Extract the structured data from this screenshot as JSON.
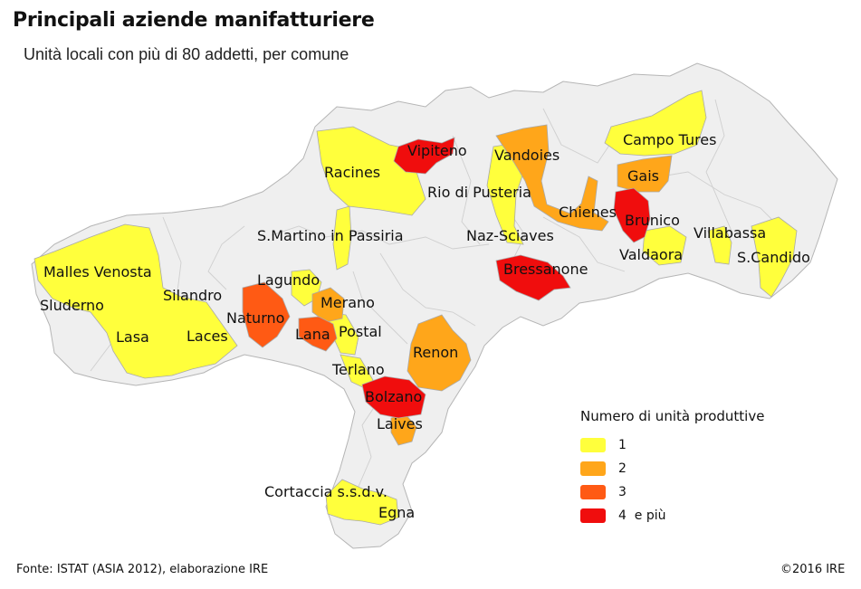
{
  "header": {
    "title": "Principali aziende manifatturiere",
    "subtitle": "Unità locali con più di 80 addetti, per comune"
  },
  "colors": {
    "class_1": "#ffff3c",
    "class_2": "#ffa61a",
    "class_3": "#ff5a14",
    "class_4": "#f00d0d",
    "no_data": "#efefef",
    "border": "#c6c6c6"
  },
  "legend": {
    "title": "Numero di unità produttive",
    "items": [
      {
        "label": "1",
        "class": 1
      },
      {
        "label": "2",
        "class": 2
      },
      {
        "label": "3",
        "class": 3
      },
      {
        "label": "4  e più",
        "class": 4
      }
    ]
  },
  "municipalities": [
    {
      "name": "Vipiteno",
      "class": 4
    },
    {
      "name": "Racines",
      "class": 1
    },
    {
      "name": "Vandoies",
      "class": 2
    },
    {
      "name": "Rio di Pusteria",
      "class": 1
    },
    {
      "name": "Campo Tures",
      "class": 1
    },
    {
      "name": "Gais",
      "class": 2
    },
    {
      "name": "Chienes",
      "class": 2
    },
    {
      "name": "Brunico",
      "class": 4
    },
    {
      "name": "S.Martino in Passiria",
      "class": 1
    },
    {
      "name": "Naz-Sciaves",
      "class": 1
    },
    {
      "name": "Villabassa",
      "class": 1
    },
    {
      "name": "Valdaora",
      "class": 1
    },
    {
      "name": "S.Candido",
      "class": 1
    },
    {
      "name": "Bressanone",
      "class": 4
    },
    {
      "name": "Malles Venosta",
      "class": 1
    },
    {
      "name": "Lagundo",
      "class": 1
    },
    {
      "name": "Silandro",
      "class": 1
    },
    {
      "name": "Sluderno",
      "class": 1
    },
    {
      "name": "Merano",
      "class": 2
    },
    {
      "name": "Naturno",
      "class": 3
    },
    {
      "name": "Lasa",
      "class": 1
    },
    {
      "name": "Laces",
      "class": 1
    },
    {
      "name": "Lana",
      "class": 3
    },
    {
      "name": "Postal",
      "class": 1
    },
    {
      "name": "Renon",
      "class": 2
    },
    {
      "name": "Terlano",
      "class": 1
    },
    {
      "name": "Bolzano",
      "class": 4
    },
    {
      "name": "Laives",
      "class": 2
    },
    {
      "name": "Cortaccia s.s.d.v.",
      "class": 1
    },
    {
      "name": "Egna",
      "class": 1
    }
  ],
  "footer": {
    "source": "Fonte: ISTAT (ASIA 2012), elaborazione IRE",
    "copyright": "©2016 IRE"
  }
}
